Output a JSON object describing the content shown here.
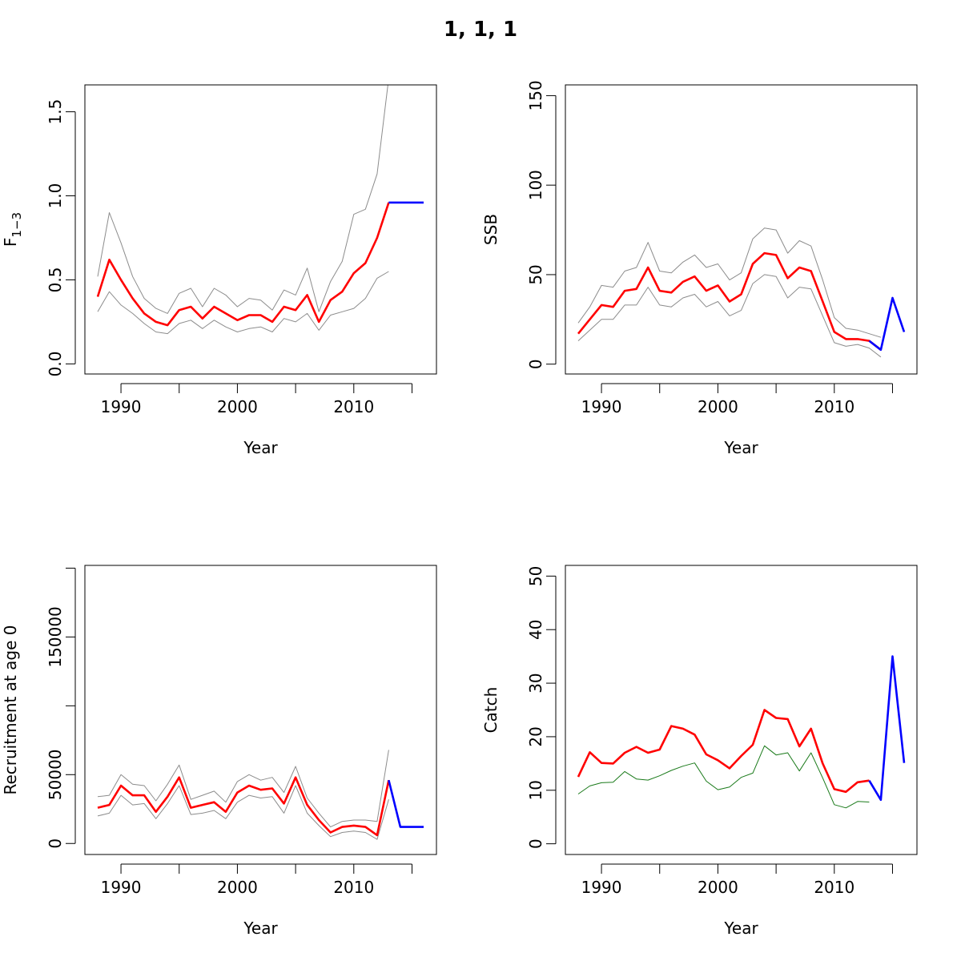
{
  "title": "1, 1, 1",
  "colors": {
    "estimate": "#ff0000",
    "projection": "#0000ff",
    "interval": "#8c8c8c",
    "observed_catch": "#1a7a1a",
    "axis": "#000000"
  },
  "chart_data": [
    {
      "type": "line",
      "panel": "top-left",
      "ylabel_main": "F",
      "ylabel_sub": "1−3",
      "xlabel": "Year",
      "xlim": [
        1986.9,
        2017.1
      ],
      "ylim": [
        -0.06,
        1.66
      ],
      "xticks": [
        1990,
        1995,
        2000,
        2005,
        2010,
        2015
      ],
      "xtick_labels": [
        "1990",
        "",
        "2000",
        "",
        "2010",
        ""
      ],
      "yticks": [
        0,
        0.5,
        1,
        1.5
      ],
      "ytick_labels": [
        "0.0",
        "0.5",
        "1.0",
        "1.5"
      ],
      "series": [
        {
          "role": "upper",
          "x": [
            1988,
            1989,
            1990,
            1991,
            1992,
            1993,
            1994,
            1995,
            1996,
            1997,
            1998,
            1999,
            2000,
            2001,
            2002,
            2003,
            2004,
            2005,
            2006,
            2007,
            2008,
            2009,
            2010,
            2011,
            2012,
            2013
          ],
          "values": [
            0.52,
            0.9,
            0.72,
            0.52,
            0.39,
            0.33,
            0.3,
            0.42,
            0.45,
            0.34,
            0.45,
            0.41,
            0.34,
            0.39,
            0.38,
            0.32,
            0.44,
            0.41,
            0.57,
            0.31,
            0.49,
            0.61,
            0.89,
            0.92,
            1.13,
            1.7
          ]
        },
        {
          "role": "lower",
          "x": [
            1988,
            1989,
            1990,
            1991,
            1992,
            1993,
            1994,
            1995,
            1996,
            1997,
            1998,
            1999,
            2000,
            2001,
            2002,
            2003,
            2004,
            2005,
            2006,
            2007,
            2008,
            2009,
            2010,
            2011,
            2012,
            2013
          ],
          "values": [
            0.31,
            0.43,
            0.35,
            0.3,
            0.24,
            0.19,
            0.18,
            0.24,
            0.26,
            0.21,
            0.26,
            0.22,
            0.19,
            0.21,
            0.22,
            0.19,
            0.27,
            0.25,
            0.3,
            0.2,
            0.29,
            0.31,
            0.33,
            0.39,
            0.51,
            0.55
          ]
        },
        {
          "role": "estimate",
          "x": [
            1988,
            1989,
            1990,
            1991,
            1992,
            1993,
            1994,
            1995,
            1996,
            1997,
            1998,
            1999,
            2000,
            2001,
            2002,
            2003,
            2004,
            2005,
            2006,
            2007,
            2008,
            2009,
            2010,
            2011,
            2012,
            2013
          ],
          "values": [
            0.4,
            0.62,
            0.5,
            0.39,
            0.3,
            0.25,
            0.23,
            0.32,
            0.34,
            0.27,
            0.34,
            0.3,
            0.26,
            0.29,
            0.29,
            0.25,
            0.34,
            0.32,
            0.41,
            0.25,
            0.38,
            0.43,
            0.54,
            0.6,
            0.75,
            0.96
          ]
        },
        {
          "role": "projection",
          "x": [
            2013,
            2014,
            2015,
            2016
          ],
          "values": [
            0.96,
            0.96,
            0.96,
            0.96
          ]
        }
      ]
    },
    {
      "type": "line",
      "panel": "top-right",
      "ylabel_main": "SSB",
      "ylabel_sub": "",
      "xlabel": "Year",
      "xlim": [
        1986.9,
        2017.1
      ],
      "ylim": [
        -5.5,
        156
      ],
      "xticks": [
        1990,
        1995,
        2000,
        2005,
        2010,
        2015
      ],
      "xtick_labels": [
        "1990",
        "",
        "2000",
        "",
        "2010",
        ""
      ],
      "yticks": [
        0,
        50,
        100,
        150
      ],
      "ytick_labels": [
        "0",
        "50",
        "100",
        "150"
      ],
      "series": [
        {
          "role": "upper",
          "x": [
            1988,
            1989,
            1990,
            1991,
            1992,
            1993,
            1994,
            1995,
            1996,
            1997,
            1998,
            1999,
            2000,
            2001,
            2002,
            2003,
            2004,
            2005,
            2006,
            2007,
            2008,
            2009,
            2010,
            2011,
            2012,
            2013,
            2014
          ],
          "values": [
            23,
            32,
            44,
            43,
            52,
            54,
            68,
            52,
            51,
            57,
            61,
            54,
            56,
            47,
            51,
            70,
            76,
            75,
            62,
            69,
            66,
            47,
            26,
            20,
            19,
            17,
            15
          ]
        },
        {
          "role": "lower",
          "x": [
            1988,
            1989,
            1990,
            1991,
            1992,
            1993,
            1994,
            1995,
            1996,
            1997,
            1998,
            1999,
            2000,
            2001,
            2002,
            2003,
            2004,
            2005,
            2006,
            2007,
            2008,
            2009,
            2010,
            2011,
            2012,
            2013,
            2014
          ],
          "values": [
            13,
            19,
            25,
            25,
            33,
            33,
            43,
            33,
            32,
            37,
            39,
            32,
            35,
            27,
            30,
            45,
            50,
            49,
            37,
            43,
            42,
            27,
            12,
            10,
            11,
            9,
            4
          ]
        },
        {
          "role": "estimate",
          "x": [
            1988,
            1989,
            1990,
            1991,
            1992,
            1993,
            1994,
            1995,
            1996,
            1997,
            1998,
            1999,
            2000,
            2001,
            2002,
            2003,
            2004,
            2005,
            2006,
            2007,
            2008,
            2009,
            2010,
            2011,
            2012,
            2013,
            2014
          ],
          "values": [
            17,
            25,
            33,
            32,
            41,
            42,
            54,
            41,
            40,
            46,
            49,
            41,
            44,
            35,
            39,
            56,
            62,
            61,
            48,
            54,
            52,
            35,
            18,
            14,
            14,
            13,
            8
          ]
        },
        {
          "role": "projection",
          "x": [
            2013,
            2014,
            2015,
            2016
          ],
          "values": [
            13,
            8,
            37,
            18
          ]
        }
      ]
    },
    {
      "type": "line",
      "panel": "bottom-left",
      "ylabel_main": "Recruitment at age 0",
      "ylabel_sub": "",
      "xlabel": "Year",
      "xlim": [
        1986.9,
        2017.1
      ],
      "ylim": [
        -8000,
        202000
      ],
      "xticks": [
        1990,
        1995,
        2000,
        2005,
        2010,
        2015
      ],
      "xtick_labels": [
        "1990",
        "",
        "2000",
        "",
        "2010",
        ""
      ],
      "yticks": [
        0,
        50000,
        100000,
        150000,
        200000
      ],
      "ytick_labels": [
        "0",
        "50000",
        "",
        "150000",
        ""
      ],
      "series": [
        {
          "role": "upper",
          "x": [
            1988,
            1989,
            1990,
            1991,
            1992,
            1993,
            1994,
            1995,
            1996,
            1997,
            1998,
            1999,
            2000,
            2001,
            2002,
            2003,
            2004,
            2005,
            2006,
            2007,
            2008,
            2009,
            2010,
            2011,
            2012,
            2013
          ],
          "values": [
            34000,
            35000,
            50000,
            43000,
            42000,
            31000,
            43000,
            57000,
            32000,
            35000,
            38000,
            30000,
            45000,
            50000,
            46000,
            48000,
            37000,
            56000,
            33000,
            22000,
            12000,
            16000,
            17000,
            17000,
            16000,
            68000
          ]
        },
        {
          "role": "lower",
          "x": [
            1988,
            1989,
            1990,
            1991,
            1992,
            1993,
            1994,
            1995,
            1996,
            1997,
            1998,
            1999,
            2000,
            2001,
            2002,
            2003,
            2004,
            2005,
            2006,
            2007,
            2008,
            2009,
            2010,
            2011,
            2012,
            2013
          ],
          "values": [
            20000,
            22000,
            35000,
            28000,
            29000,
            18000,
            29000,
            42000,
            21000,
            22000,
            24000,
            18000,
            30000,
            35000,
            33000,
            34000,
            22000,
            42000,
            22000,
            13000,
            5000,
            8000,
            9000,
            8000,
            3000,
            32000
          ]
        },
        {
          "role": "estimate",
          "x": [
            1988,
            1989,
            1990,
            1991,
            1992,
            1993,
            1994,
            1995,
            1996,
            1997,
            1998,
            1999,
            2000,
            2001,
            2002,
            2003,
            2004,
            2005,
            2006,
            2007,
            2008,
            2009,
            2010,
            2011,
            2012,
            2013
          ],
          "values": [
            26000,
            28000,
            42000,
            35000,
            35000,
            23000,
            34000,
            48000,
            26000,
            28000,
            30000,
            23000,
            37000,
            42000,
            39000,
            40000,
            29000,
            48000,
            28000,
            17000,
            8000,
            12000,
            13000,
            12000,
            6000,
            46000
          ]
        },
        {
          "role": "projection",
          "x": [
            2013,
            2014,
            2015,
            2016
          ],
          "values": [
            46000,
            12000,
            12000,
            12000
          ]
        }
      ]
    },
    {
      "type": "line",
      "panel": "bottom-right",
      "ylabel_main": "Catch",
      "ylabel_sub": "",
      "xlabel": "Year",
      "xlim": [
        1986.9,
        2017.1
      ],
      "ylim": [
        -2,
        52
      ],
      "xticks": [
        1990,
        1995,
        2000,
        2005,
        2010,
        2015
      ],
      "xtick_labels": [
        "1990",
        "",
        "2000",
        "",
        "2010",
        ""
      ],
      "yticks": [
        0,
        10,
        20,
        30,
        40,
        50
      ],
      "ytick_labels": [
        "0",
        "10",
        "20",
        "30",
        "40",
        "50"
      ],
      "series": [
        {
          "role": "observed_catch",
          "x": [
            1988,
            1989,
            1990,
            1991,
            1992,
            1993,
            1994,
            1995,
            1996,
            1997,
            1998,
            1999,
            2000,
            2001,
            2002,
            2003,
            2004,
            2005,
            2006,
            2007,
            2008,
            2009,
            2010,
            2011,
            2012,
            2013
          ],
          "values": [
            9.3,
            10.8,
            11.4,
            11.5,
            13.5,
            12.1,
            11.9,
            12.7,
            13.7,
            14.5,
            15.1,
            11.7,
            10.1,
            10.6,
            12.4,
            13.2,
            18.3,
            16.6,
            17.0,
            13.6,
            17.0,
            12.3,
            7.3,
            6.7,
            7.9,
            7.8
          ]
        },
        {
          "role": "estimate",
          "x": [
            1988,
            1989,
            1990,
            1991,
            1992,
            1993,
            1994,
            1995,
            1996,
            1997,
            1998,
            1999,
            2000,
            2001,
            2002,
            2003,
            2004,
            2005,
            2006,
            2007,
            2008,
            2009,
            2010,
            2011,
            2012,
            2013
          ],
          "values": [
            12.5,
            17.1,
            15.1,
            15.0,
            17.0,
            18.1,
            17.0,
            17.6,
            22.0,
            21.5,
            20.4,
            16.7,
            15.6,
            14.1,
            16.4,
            18.5,
            25.0,
            23.5,
            23.3,
            18.2,
            21.5,
            15.0,
            10.2,
            9.7,
            11.5,
            11.8
          ]
        },
        {
          "role": "projection",
          "x": [
            2013,
            2014,
            2015,
            2016
          ],
          "values": [
            11.8,
            8.2,
            35.0,
            15.1
          ]
        }
      ]
    }
  ]
}
